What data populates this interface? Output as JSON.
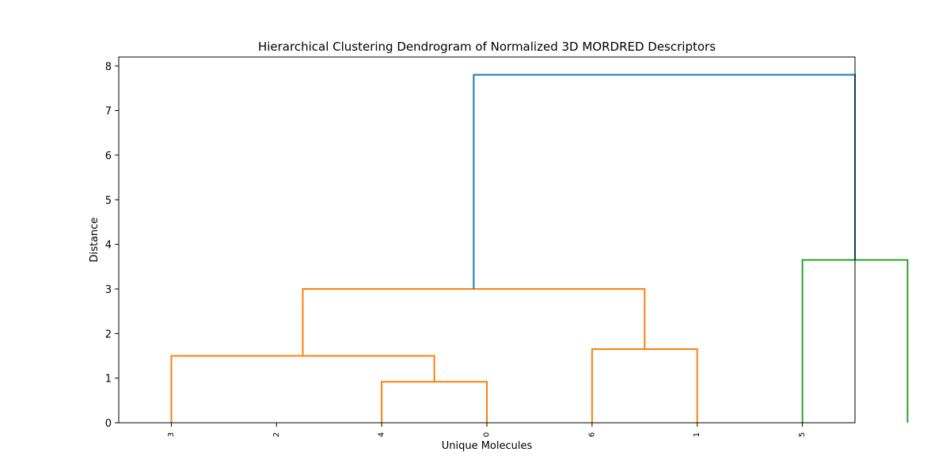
{
  "chart_data": {
    "type": "dendrogram",
    "title": "Hierarchical Clustering Dendrogram of Normalized 3D MORDRED Descriptors",
    "xlabel": "Unique Molecules",
    "ylabel": "Distance",
    "leaves": [
      "3",
      "2",
      "4",
      "0",
      "6",
      "1",
      "5"
    ],
    "ylim": [
      0,
      8.2
    ],
    "yticks": [
      0,
      1,
      2,
      3,
      4,
      5,
      6,
      7,
      8
    ],
    "grid": false,
    "links": [
      {
        "x": [
          25,
          25,
          35,
          35
        ],
        "y": [
          0,
          0.92,
          0.92,
          0
        ],
        "color": "#ff7f0e"
      },
      {
        "x": [
          5,
          5,
          30,
          30
        ],
        "y": [
          0,
          1.5,
          1.5,
          0.92
        ],
        "color": "#ff7f0e"
      },
      {
        "x": [
          45,
          45,
          55,
          55
        ],
        "y": [
          0,
          1.65,
          1.65,
          0
        ],
        "color": "#ff7f0e"
      },
      {
        "x": [
          17.5,
          17.5,
          50,
          50
        ],
        "y": [
          1.5,
          3.0,
          3.0,
          1.65
        ],
        "color": "#ff7f0e"
      },
      {
        "x": [
          65,
          65,
          75,
          75
        ],
        "y": [
          0,
          3.65,
          3.65,
          0
        ],
        "color": "#2ca02c"
      },
      {
        "x": [
          33.75,
          33.75,
          70,
          70
        ],
        "y": [
          3.0,
          7.8,
          7.8,
          3.65
        ],
        "color": "#1f77b4"
      }
    ]
  }
}
